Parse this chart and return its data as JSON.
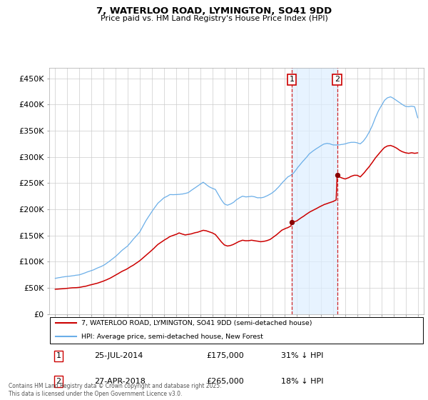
{
  "title": "7, WATERLOO ROAD, LYMINGTON, SO41 9DD",
  "subtitle": "Price paid vs. HM Land Registry's House Price Index (HPI)",
  "footer": "Contains HM Land Registry data © Crown copyright and database right 2025.\nThis data is licensed under the Open Government Licence v3.0.",
  "legend_line1": "7, WATERLOO ROAD, LYMINGTON, SO41 9DD (semi-detached house)",
  "legend_line2": "HPI: Average price, semi-detached house, New Forest",
  "sale1_date": "25-JUL-2014",
  "sale1_price": "£175,000",
  "sale1_hpi": "31% ↓ HPI",
  "sale2_date": "27-APR-2018",
  "sale2_price": "£265,000",
  "sale2_hpi": "18% ↓ HPI",
  "hpi_color": "#6aaee8",
  "hpi_fill_color": "#ddeeff",
  "price_color": "#cc0000",
  "vline_color": "#cc0000",
  "sale_marker_color": "#880000",
  "background_color": "#ffffff",
  "sale1_x": 2014.58,
  "sale1_y": 175000,
  "sale2_x": 2018.33,
  "sale2_y": 265000,
  "ylim": [
    0,
    470000
  ],
  "xlim": [
    1994.5,
    2025.5
  ],
  "yticks": [
    0,
    50000,
    100000,
    150000,
    200000,
    250000,
    300000,
    350000,
    400000,
    450000
  ],
  "ytick_labels": [
    "£0",
    "£50K",
    "£100K",
    "£150K",
    "£200K",
    "£250K",
    "£300K",
    "£350K",
    "£400K",
    "£450K"
  ]
}
